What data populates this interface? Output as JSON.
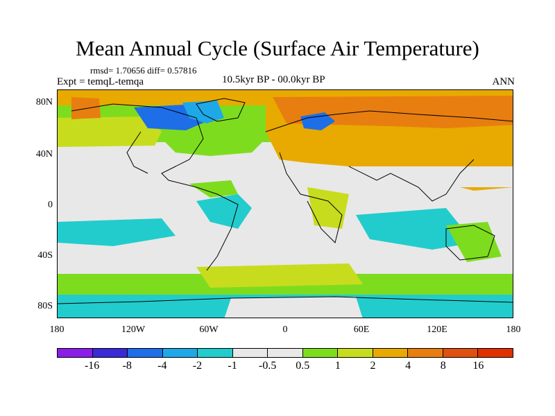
{
  "title": "Mean Annual Cycle (Surface Air Temperature)",
  "stats": "rmsd= 1.70656 diff= 0.57816",
  "expt": "Expt = temqL-temqa",
  "period": "10.5kyr BP - 00.0kyr BP",
  "season": "ANN",
  "y_ticks": [
    "80N",
    "40N",
    "0",
    "40S",
    "80S"
  ],
  "x_ticks": [
    "180",
    "120W",
    "60W",
    "0",
    "60E",
    "120E",
    "180"
  ],
  "colorbar": {
    "colors": [
      "#8a1ee8",
      "#3a2ad6",
      "#1e6ee8",
      "#1ea8e8",
      "#22cccc",
      "#e8e8e8",
      "#e8e8e8",
      "#7edc1e",
      "#c8dc1e",
      "#e8aa00",
      "#e87e10",
      "#e05010",
      "#e03000"
    ],
    "labels": [
      "-16",
      "-8",
      "-4",
      "-2",
      "-1",
      "-0.5",
      "0.5",
      "1",
      "2",
      "4",
      "8",
      "16"
    ]
  }
}
